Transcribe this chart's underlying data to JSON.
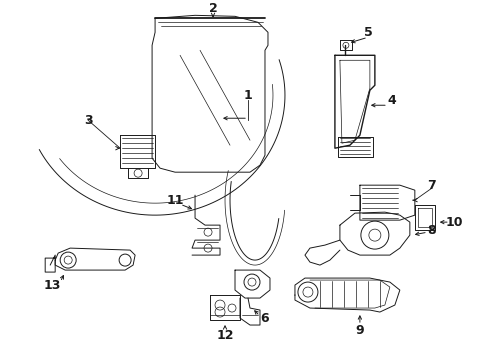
{
  "bg_color": "#ffffff",
  "line_color": "#1a1a1a",
  "label_fontsize": 9,
  "lw_main": 1.0,
  "lw_thin": 0.7,
  "lw_hair": 0.5
}
